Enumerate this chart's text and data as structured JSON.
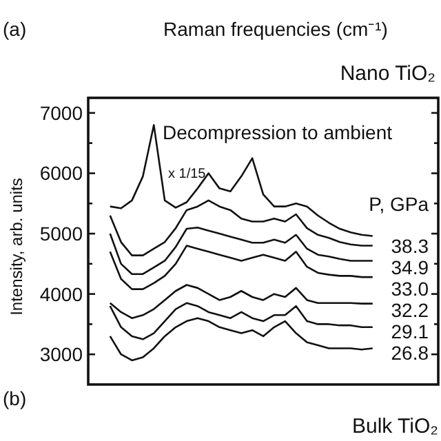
{
  "chart_data": {
    "type": "line",
    "title": "Nano TiO₂",
    "ylabel": "Intensity, arb. units",
    "legend_title": "P, GPa",
    "annotations": [
      "(a)",
      "Raman frequencies (cm⁻¹)",
      "Decompression to ambient",
      "x 1/15",
      "(b)",
      "Bulk TiO₂"
    ],
    "categories": [
      null,
      null,
      null,
      null,
      null,
      null,
      null,
      null,
      null,
      null,
      null,
      null,
      null,
      null,
      null,
      null,
      null,
      null,
      null,
      null,
      null,
      null,
      null,
      null,
      null,
      null,
      null,
      null,
      null,
      null,
      null,
      null,
      null
    ],
    "ylim": [
      2500,
      7250
    ],
    "yticks": [
      3000,
      {
        "value": 3500,
        "label": null
      },
      4000,
      {
        "value": 4500,
        "label": null
      },
      5000,
      {
        "value": 5500,
        "label": null
      },
      6000,
      {
        "value": 6500,
        "label": null
      },
      7000
    ],
    "tick_labels": "y",
    "grid": false,
    "legend": "right",
    "marker": "none",
    "line_style": "solid",
    "series": [
      {
        "color": "#111111",
        "values": [
          null,
          null,
          5450,
          5420,
          5550,
          5950,
          6800,
          5550,
          5430,
          5520,
          5750,
          6000,
          5750,
          5700,
          5950,
          6250,
          5650,
          5450,
          5450,
          5500,
          5450,
          5300,
          5180,
          5080,
          5020,
          4980,
          4960,
          null,
          null,
          null,
          null,
          null,
          null
        ]
      },
      {
        "name": "38.3",
        "color": "#111111",
        "values": [
          null,
          null,
          5300,
          4860,
          4640,
          4640,
          4750,
          4860,
          5090,
          5390,
          5450,
          5550,
          5450,
          5390,
          5250,
          5200,
          5200,
          5250,
          5200,
          5320,
          5090,
          4980,
          4930,
          4860,
          4820,
          4800,
          4800,
          null,
          null,
          null,
          null,
          null,
          null
        ]
      },
      {
        "name": "34.9",
        "color": "#111111",
        "values": [
          null,
          null,
          5000,
          4500,
          4330,
          4330,
          4440,
          4550,
          4780,
          5080,
          5100,
          5050,
          5000,
          4950,
          4900,
          4850,
          4850,
          4900,
          4850,
          4980,
          4750,
          4650,
          4620,
          4580,
          4550,
          4550,
          4550,
          null,
          null,
          null,
          null,
          null,
          null
        ]
      },
      {
        "name": "33.0",
        "color": "#111111",
        "values": [
          null,
          null,
          4700,
          4250,
          4080,
          4080,
          4180,
          4300,
          4500,
          4800,
          4750,
          4700,
          4650,
          4600,
          4550,
          4600,
          4650,
          4600,
          4550,
          4700,
          4450,
          4350,
          4320,
          4300,
          4300,
          4280,
          4280,
          null,
          null,
          null,
          null,
          null,
          null
        ]
      },
      {
        "name": "32.2",
        "color": "#111111",
        "values": [
          null,
          null,
          3850,
          3700,
          3600,
          3650,
          3750,
          3900,
          4050,
          4150,
          4100,
          4000,
          3900,
          3950,
          4050,
          3950,
          3900,
          4000,
          3950,
          4100,
          3900,
          3850,
          3850,
          3850,
          3850,
          3840,
          3840,
          null,
          null,
          null,
          null,
          null,
          null
        ]
      },
      {
        "name": "29.1",
        "color": "#111111",
        "values": [
          null,
          null,
          3800,
          3450,
          3300,
          3250,
          3350,
          3550,
          3750,
          3850,
          3800,
          3700,
          3650,
          3600,
          3700,
          3600,
          3550,
          3650,
          3650,
          3800,
          3550,
          3500,
          3500,
          3480,
          3480,
          3450,
          3450,
          null,
          null,
          null,
          null,
          null,
          null
        ]
      },
      {
        "name": "26.8",
        "color": "#111111",
        "values": [
          null,
          null,
          3300,
          3000,
          2900,
          2950,
          3100,
          3300,
          3450,
          3550,
          3600,
          3550,
          3450,
          3400,
          3350,
          3400,
          3300,
          3450,
          3550,
          3350,
          3200,
          3150,
          3100,
          3100,
          3100,
          3080,
          3100,
          null,
          null,
          null,
          null,
          null,
          null
        ]
      }
    ]
  }
}
